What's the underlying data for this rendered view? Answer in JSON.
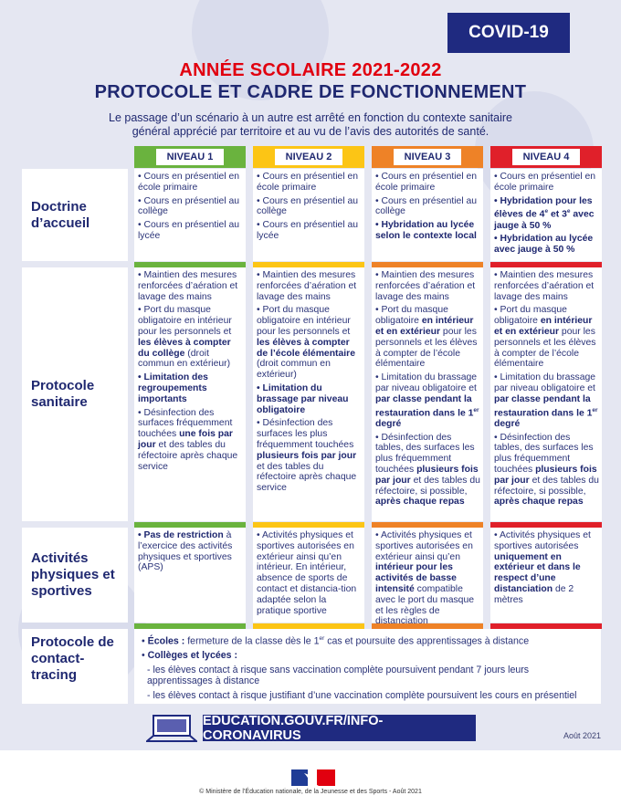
{
  "badge": "COVID-19",
  "title_line1": "ANNÉE SCOLAIRE 2021-2022",
  "title_line2": "PROTOCOLE ET CADRE DE FONCTIONNEMENT",
  "intro": "Le passage d’un scénario à un autre est arrêté en fonction du contexte sanitaire général apprécié par territoire et au vu de l’avis des autorités de santé.",
  "colors": {
    "niveau1": "#6ab33e",
    "niveau2": "#fcc515",
    "niveau3": "#ee8227",
    "niveau4": "#e0202a",
    "navy": "#1f2a80",
    "title_red": "#e1000f"
  },
  "levels": [
    "NIVEAU 1",
    "NIVEAU 2",
    "NIVEAU 3",
    "NIVEAU 4"
  ],
  "rows": [
    {
      "label": "Doctrine d’accueil",
      "cells": [
        [
          [
            {
              "t": "• Cours en présentiel en école primaire"
            }
          ],
          [
            {
              "t": "• Cours en présentiel au collège"
            }
          ],
          [
            {
              "t": "• Cours en présentiel au lycée"
            }
          ]
        ],
        [
          [
            {
              "t": "• Cours en présentiel en école primaire"
            }
          ],
          [
            {
              "t": "• Cours en présentiel au collège"
            }
          ],
          [
            {
              "t": "• Cours en présentiel au lycée"
            }
          ]
        ],
        [
          [
            {
              "t": "• Cours en présentiel en école primaire"
            }
          ],
          [
            {
              "t": "• Cours en présentiel au collège"
            }
          ],
          [
            {
              "t": "• Hybridation au lycée selon le contexte local",
              "b": true
            }
          ]
        ],
        [
          [
            {
              "t": "• Cours en présentiel en école primaire"
            }
          ],
          [
            {
              "t": "• Hybridation pour les élèves de 4",
              "b": true
            },
            {
              "t": "e",
              "b": true,
              "sup": true
            },
            {
              "t": " et 3",
              "b": true
            },
            {
              "t": "e",
              "b": true,
              "sup": true
            },
            {
              "t": " avec jauge à 50 %",
              "b": true
            }
          ],
          [
            {
              "t": "• Hybridation au lycée avec jauge à 50 %",
              "b": true
            }
          ]
        ]
      ]
    },
    {
      "label": "Protocole sanitaire",
      "cells": [
        [
          [
            {
              "t": "• Maintien des mesures renforcées d’aération et lavage des mains"
            }
          ],
          [
            {
              "t": "• Port du masque obligatoire en intérieur pour les personnels et "
            },
            {
              "t": "les élèves à compter du collège",
              "b": true
            },
            {
              "t": " (droit commun en extérieur)"
            }
          ],
          [
            {
              "t": "• Limitation des regroupements importants",
              "b": true
            }
          ],
          [
            {
              "t": "• Désinfection des surfaces fréquemment touchées "
            },
            {
              "t": "une fois par jour",
              "b": true
            },
            {
              "t": " et des tables du réfectoire après chaque service"
            }
          ]
        ],
        [
          [
            {
              "t": "• Maintien des mesures renforcées d’aération et lavage des mains"
            }
          ],
          [
            {
              "t": "• Port du masque obligatoire en intérieur pour les personnels et "
            },
            {
              "t": "les élèves à compter de l’école élémentaire",
              "b": true
            },
            {
              "t": " (droit commun en extérieur)"
            }
          ],
          [
            {
              "t": "• Limitation du brassage par niveau obligatoire",
              "b": true
            }
          ],
          [
            {
              "t": "• Désinfection des surfaces les plus fréquemment touchées "
            },
            {
              "t": "plusieurs fois par jour",
              "b": true
            },
            {
              "t": " et des tables du réfectoire après chaque service"
            }
          ]
        ],
        [
          [
            {
              "t": "• Maintien des mesures renforcées d’aération et lavage des mains"
            }
          ],
          [
            {
              "t": "• Port du masque obligatoire "
            },
            {
              "t": "en intérieur et en extérieur",
              "b": true
            },
            {
              "t": " pour les personnels et les élèves à compter de l’école élémentaire"
            }
          ],
          [
            {
              "t": "• Limitation du brassage par niveau obligatoire et "
            },
            {
              "t": "par classe pendant la restauration dans le 1",
              "b": true
            },
            {
              "t": "er",
              "b": true,
              "sup": true
            },
            {
              "t": " degré",
              "b": true
            }
          ],
          [
            {
              "t": "• Désinfection des tables, des surfaces les plus fréquemment touchées "
            },
            {
              "t": "plusieurs fois par jour",
              "b": true
            },
            {
              "t": " et des tables du réfectoire, si possible, "
            },
            {
              "t": "après chaque repas",
              "b": true
            }
          ]
        ],
        [
          [
            {
              "t": "• Maintien des mesures renforcées d’aération et lavage des mains"
            }
          ],
          [
            {
              "t": "• Port du masque obligatoire "
            },
            {
              "t": "en intérieur et en extérieur",
              "b": true
            },
            {
              "t": " pour les personnels et les élèves à compter de l’école élémentaire"
            }
          ],
          [
            {
              "t": "• Limitation du brassage par niveau obligatoire et "
            },
            {
              "t": "par classe pendant la restauration dans le 1",
              "b": true
            },
            {
              "t": "er",
              "b": true,
              "sup": true
            },
            {
              "t": " degré",
              "b": true
            }
          ],
          [
            {
              "t": "• Désinfection des tables, des surfaces les plus fréquemment touchées "
            },
            {
              "t": "plusieurs fois par jour",
              "b": true
            },
            {
              "t": " et des tables du réfectoire, si possible, "
            },
            {
              "t": "après chaque repas",
              "b": true
            }
          ]
        ]
      ]
    },
    {
      "label": "Activités physiques et sportives",
      "cells": [
        [
          [
            {
              "t": "• Pas de restriction",
              "b": true
            },
            {
              "t": " à l’exercice des activités physiques et sportives (APS)"
            }
          ]
        ],
        [
          [
            {
              "t": "• Activités physiques et sportives autorisées en extérieur ainsi qu’en intérieur. En intérieur, absence de sports de contact et distancia-tion adaptée selon la pratique sportive"
            }
          ]
        ],
        [
          [
            {
              "t": "• Activités physiques et sportives autorisées en extérieur ainsi qu’en "
            },
            {
              "t": "intérieur pour les activités de basse intensité",
              "b": true
            },
            {
              "t": " compatible avec le port du masque et les règles de distanciation"
            }
          ]
        ],
        [
          [
            {
              "t": "• Activités physiques et sportives autorisées "
            },
            {
              "t": "uniquement en extérieur et dans le respect d’une distanciation",
              "b": true
            },
            {
              "t": " de 2 mètres"
            }
          ]
        ]
      ]
    }
  ],
  "contact": {
    "label": "Protocole de contact-tracing",
    "lines": [
      [
        {
          "t": "• "
        },
        {
          "t": "Écoles :",
          "b": true
        },
        {
          "t": " fermeture de la classe dès le 1"
        },
        {
          "t": "er",
          "sup": true
        },
        {
          "t": " cas et poursuite des apprentissages à distance"
        }
      ],
      [
        {
          "t": "• "
        },
        {
          "t": "Collèges et lycées :",
          "b": true
        }
      ],
      [
        {
          "t": "- les élèves contact à risque sans vaccination complète poursuivent pendant 7 jours leurs apprentissages à distance"
        }
      ],
      [
        {
          "t": "- les élèves contact à risque justifiant d’une vaccination complète poursuivent les cours en présentiel"
        }
      ]
    ]
  },
  "footer": {
    "url": "EDUCATION.GOUV.FR/INFO-CORONAVIRUS",
    "date": "Août 2021",
    "copyright": "© Ministère de l’Éducation nationale, de la Jeunesse et des Sports - Août 2021"
  }
}
